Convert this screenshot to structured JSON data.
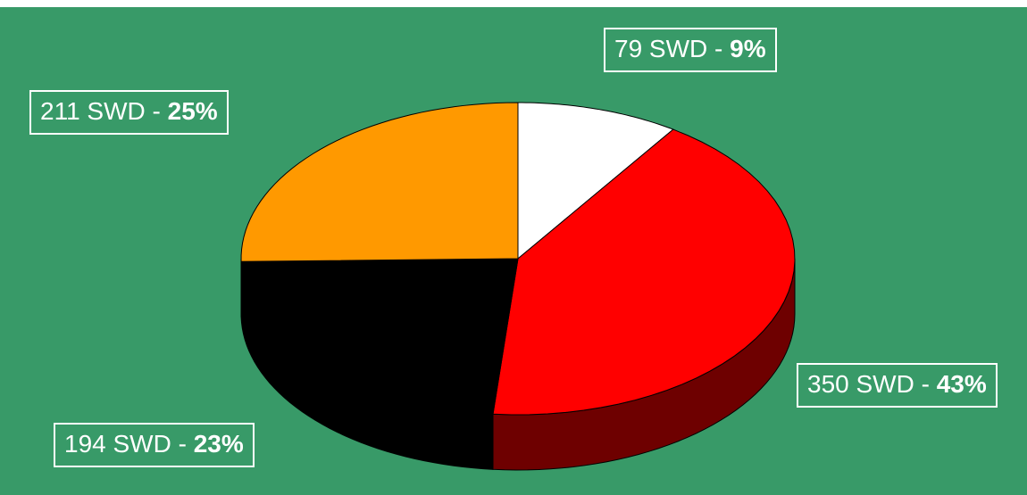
{
  "chart_data": {
    "type": "pie3d",
    "categories": [
      null,
      null,
      null,
      null
    ],
    "values": [
      79,
      350,
      194,
      211
    ],
    "value_labels": [
      "79 SWD",
      "350 SWD",
      "194 SWD",
      "211 SWD"
    ],
    "label_separator": " - ",
    "percent_labels": [
      "9%",
      "43%",
      "23%",
      "25%"
    ],
    "colors": [
      "#ffffff",
      "#ff0000",
      "#000000",
      "#ff9900"
    ],
    "side_colors": [
      "#d8d8d8",
      "#6e0000",
      "#000000",
      "#b86e00"
    ]
  }
}
